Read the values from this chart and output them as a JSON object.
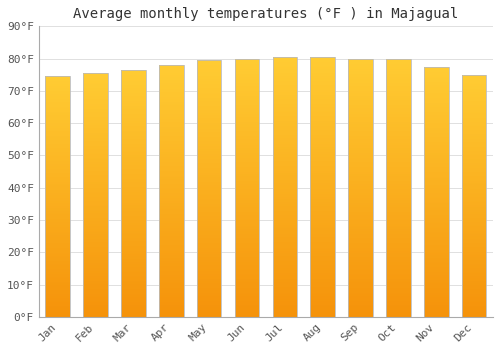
{
  "title": "Average monthly temperatures (°F ) in Majagual",
  "months": [
    "Jan",
    "Feb",
    "Mar",
    "Apr",
    "May",
    "Jun",
    "Jul",
    "Aug",
    "Sep",
    "Oct",
    "Nov",
    "Dec"
  ],
  "values": [
    74.5,
    75.5,
    76.5,
    78.0,
    79.5,
    80.0,
    80.5,
    80.5,
    80.0,
    80.0,
    77.5,
    75.0
  ],
  "bar_color_top": "#FFCC33",
  "bar_color_bottom": "#F5920A",
  "bar_edge_color": "#BBBBBB",
  "ylim": [
    0,
    90
  ],
  "yticks": [
    0,
    10,
    20,
    30,
    40,
    50,
    60,
    70,
    80,
    90
  ],
  "ytick_labels": [
    "0°F",
    "10°F",
    "20°F",
    "30°F",
    "40°F",
    "50°F",
    "60°F",
    "70°F",
    "80°F",
    "90°F"
  ],
  "background_color": "#ffffff",
  "grid_color": "#e0e0e0",
  "title_fontsize": 10,
  "tick_fontsize": 8,
  "font_family": "monospace",
  "bar_width": 0.65
}
